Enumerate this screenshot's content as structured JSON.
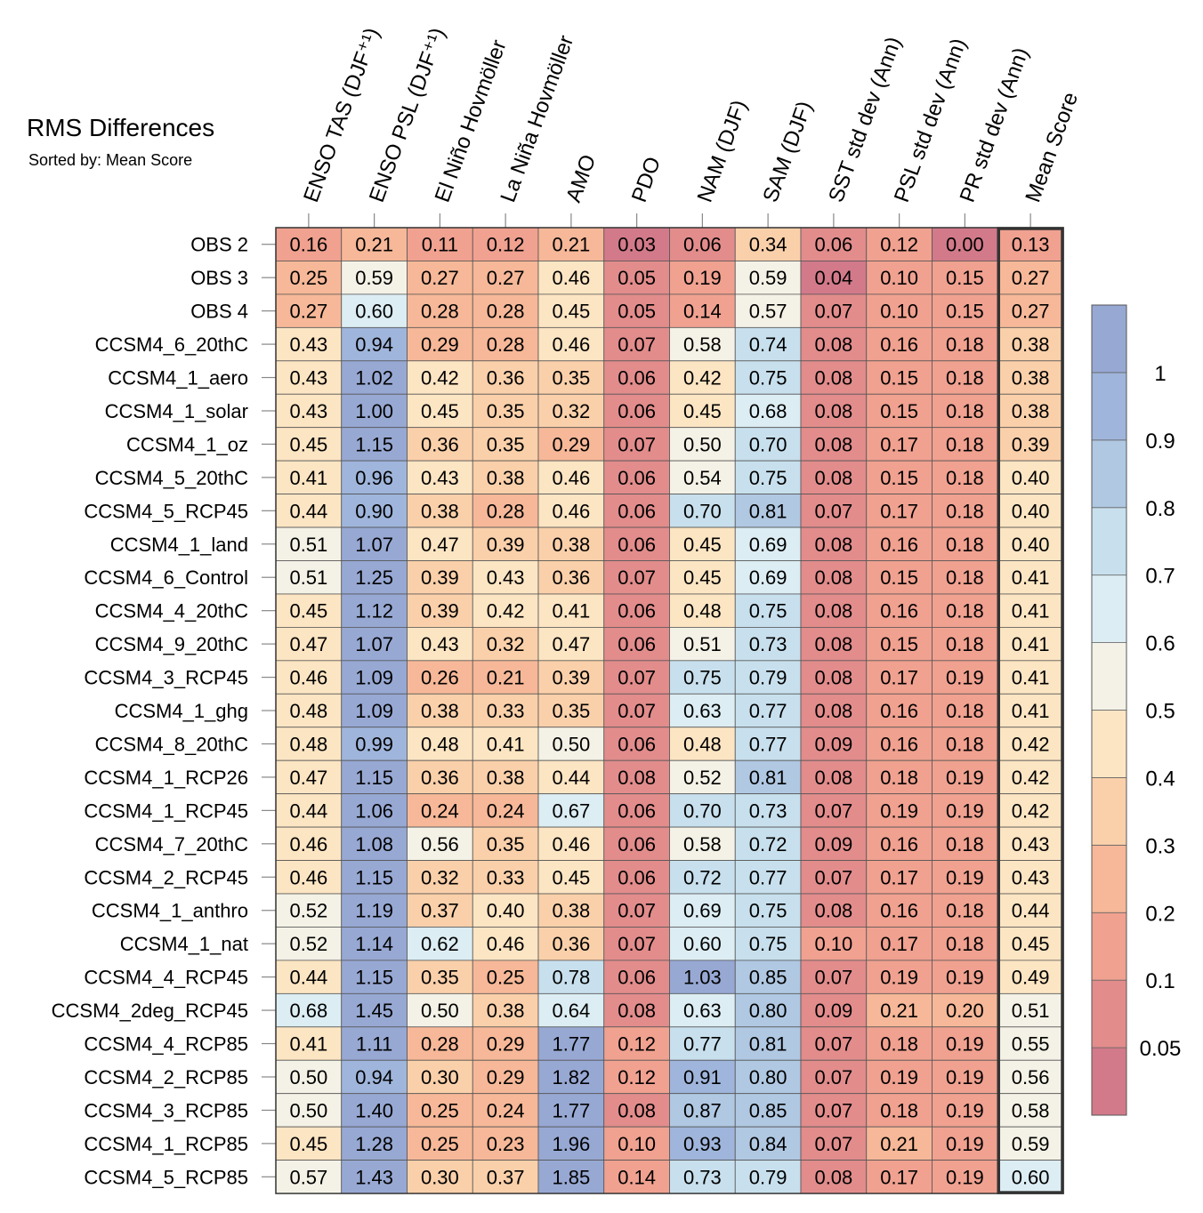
{
  "chart_data": {
    "type": "heatmap",
    "title": "RMS Differences",
    "subtitle": "Sorted by: Mean Score",
    "columns": [
      "ENSO TAS (DJF⁺¹)",
      "ENSO PSL (DJF⁺¹)",
      "El Niño Hovmöller",
      "La Niña Hovmöller",
      "AMO",
      "PDO",
      "NAM (DJF)",
      "SAM (DJF)",
      "SST std dev (Ann)",
      "PSL std dev (Ann)",
      "PR std dev (Ann)",
      "Mean Score"
    ],
    "rows": [
      {
        "name": "OBS 2",
        "values": [
          "0.16",
          "0.21",
          "0.11",
          "0.12",
          "0.21",
          "0.03",
          "0.06",
          "0.34",
          "0.06",
          "0.12",
          "0.00",
          "0.13"
        ]
      },
      {
        "name": "OBS 3",
        "values": [
          "0.25",
          "0.59",
          "0.27",
          "0.27",
          "0.46",
          "0.05",
          "0.19",
          "0.59",
          "0.04",
          "0.10",
          "0.15",
          "0.27"
        ]
      },
      {
        "name": "OBS 4",
        "values": [
          "0.27",
          "0.60",
          "0.28",
          "0.28",
          "0.45",
          "0.05",
          "0.14",
          "0.57",
          "0.07",
          "0.10",
          "0.15",
          "0.27"
        ]
      },
      {
        "name": "CCSM4_6_20thC",
        "values": [
          "0.43",
          "0.94",
          "0.29",
          "0.28",
          "0.46",
          "0.07",
          "0.58",
          "0.74",
          "0.08",
          "0.16",
          "0.18",
          "0.38"
        ]
      },
      {
        "name": "CCSM4_1_aero",
        "values": [
          "0.43",
          "1.02",
          "0.42",
          "0.36",
          "0.35",
          "0.06",
          "0.42",
          "0.75",
          "0.08",
          "0.15",
          "0.18",
          "0.38"
        ]
      },
      {
        "name": "CCSM4_1_solar",
        "values": [
          "0.43",
          "1.00",
          "0.45",
          "0.35",
          "0.32",
          "0.06",
          "0.45",
          "0.68",
          "0.08",
          "0.15",
          "0.18",
          "0.38"
        ]
      },
      {
        "name": "CCSM4_1_oz",
        "values": [
          "0.45",
          "1.15",
          "0.36",
          "0.35",
          "0.29",
          "0.07",
          "0.50",
          "0.70",
          "0.08",
          "0.17",
          "0.18",
          "0.39"
        ]
      },
      {
        "name": "CCSM4_5_20thC",
        "values": [
          "0.41",
          "0.96",
          "0.43",
          "0.38",
          "0.46",
          "0.06",
          "0.54",
          "0.75",
          "0.08",
          "0.15",
          "0.18",
          "0.40"
        ]
      },
      {
        "name": "CCSM4_5_RCP45",
        "values": [
          "0.44",
          "0.90",
          "0.38",
          "0.28",
          "0.46",
          "0.06",
          "0.70",
          "0.81",
          "0.07",
          "0.17",
          "0.18",
          "0.40"
        ]
      },
      {
        "name": "CCSM4_1_land",
        "values": [
          "0.51",
          "1.07",
          "0.47",
          "0.39",
          "0.38",
          "0.06",
          "0.45",
          "0.69",
          "0.08",
          "0.16",
          "0.18",
          "0.40"
        ]
      },
      {
        "name": "CCSM4_6_Control",
        "values": [
          "0.51",
          "1.25",
          "0.39",
          "0.43",
          "0.36",
          "0.07",
          "0.45",
          "0.69",
          "0.08",
          "0.15",
          "0.18",
          "0.41"
        ]
      },
      {
        "name": "CCSM4_4_20thC",
        "values": [
          "0.45",
          "1.12",
          "0.39",
          "0.42",
          "0.41",
          "0.06",
          "0.48",
          "0.75",
          "0.08",
          "0.16",
          "0.18",
          "0.41"
        ]
      },
      {
        "name": "CCSM4_9_20thC",
        "values": [
          "0.47",
          "1.07",
          "0.43",
          "0.32",
          "0.47",
          "0.06",
          "0.51",
          "0.73",
          "0.08",
          "0.15",
          "0.18",
          "0.41"
        ]
      },
      {
        "name": "CCSM4_3_RCP45",
        "values": [
          "0.46",
          "1.09",
          "0.26",
          "0.21",
          "0.39",
          "0.07",
          "0.75",
          "0.79",
          "0.08",
          "0.17",
          "0.19",
          "0.41"
        ]
      },
      {
        "name": "CCSM4_1_ghg",
        "values": [
          "0.48",
          "1.09",
          "0.38",
          "0.33",
          "0.35",
          "0.07",
          "0.63",
          "0.77",
          "0.08",
          "0.16",
          "0.18",
          "0.41"
        ]
      },
      {
        "name": "CCSM4_8_20thC",
        "values": [
          "0.48",
          "0.99",
          "0.48",
          "0.41",
          "0.50",
          "0.06",
          "0.48",
          "0.77",
          "0.09",
          "0.16",
          "0.18",
          "0.42"
        ]
      },
      {
        "name": "CCSM4_1_RCP26",
        "values": [
          "0.47",
          "1.15",
          "0.36",
          "0.38",
          "0.44",
          "0.08",
          "0.52",
          "0.81",
          "0.08",
          "0.18",
          "0.19",
          "0.42"
        ]
      },
      {
        "name": "CCSM4_1_RCP45",
        "values": [
          "0.44",
          "1.06",
          "0.24",
          "0.24",
          "0.67",
          "0.06",
          "0.70",
          "0.73",
          "0.07",
          "0.19",
          "0.19",
          "0.42"
        ]
      },
      {
        "name": "CCSM4_7_20thC",
        "values": [
          "0.46",
          "1.08",
          "0.56",
          "0.35",
          "0.46",
          "0.06",
          "0.58",
          "0.72",
          "0.09",
          "0.16",
          "0.18",
          "0.43"
        ]
      },
      {
        "name": "CCSM4_2_RCP45",
        "values": [
          "0.46",
          "1.15",
          "0.32",
          "0.33",
          "0.45",
          "0.06",
          "0.72",
          "0.77",
          "0.07",
          "0.17",
          "0.19",
          "0.43"
        ]
      },
      {
        "name": "CCSM4_1_anthro",
        "values": [
          "0.52",
          "1.19",
          "0.37",
          "0.40",
          "0.38",
          "0.07",
          "0.69",
          "0.75",
          "0.08",
          "0.16",
          "0.18",
          "0.44"
        ]
      },
      {
        "name": "CCSM4_1_nat",
        "values": [
          "0.52",
          "1.14",
          "0.62",
          "0.46",
          "0.36",
          "0.07",
          "0.60",
          "0.75",
          "0.10",
          "0.17",
          "0.18",
          "0.45"
        ]
      },
      {
        "name": "CCSM4_4_RCP45",
        "values": [
          "0.44",
          "1.15",
          "0.35",
          "0.25",
          "0.78",
          "0.06",
          "1.03",
          "0.85",
          "0.07",
          "0.19",
          "0.19",
          "0.49"
        ]
      },
      {
        "name": "CCSM4_2deg_RCP45",
        "values": [
          "0.68",
          "1.45",
          "0.50",
          "0.38",
          "0.64",
          "0.08",
          "0.63",
          "0.80",
          "0.09",
          "0.21",
          "0.20",
          "0.51"
        ]
      },
      {
        "name": "CCSM4_4_RCP85",
        "values": [
          "0.41",
          "1.11",
          "0.28",
          "0.29",
          "1.77",
          "0.12",
          "0.77",
          "0.81",
          "0.07",
          "0.18",
          "0.19",
          "0.55"
        ]
      },
      {
        "name": "CCSM4_2_RCP85",
        "values": [
          "0.50",
          "0.94",
          "0.30",
          "0.29",
          "1.82",
          "0.12",
          "0.91",
          "0.80",
          "0.07",
          "0.19",
          "0.19",
          "0.56"
        ]
      },
      {
        "name": "CCSM4_3_RCP85",
        "values": [
          "0.50",
          "1.40",
          "0.25",
          "0.24",
          "1.77",
          "0.08",
          "0.87",
          "0.85",
          "0.07",
          "0.18",
          "0.19",
          "0.58"
        ]
      },
      {
        "name": "CCSM4_1_RCP85",
        "values": [
          "0.45",
          "1.28",
          "0.25",
          "0.23",
          "1.96",
          "0.10",
          "0.93",
          "0.84",
          "0.07",
          "0.21",
          "0.19",
          "0.59"
        ]
      },
      {
        "name": "CCSM4_5_RCP85",
        "values": [
          "0.57",
          "1.43",
          "0.30",
          "0.37",
          "1.85",
          "0.14",
          "0.73",
          "0.79",
          "0.08",
          "0.17",
          "0.19",
          "0.60"
        ]
      }
    ],
    "colorbar": {
      "boundaries": [
        0.05,
        0.1,
        0.2,
        0.3,
        0.4,
        0.5,
        0.6,
        0.7,
        0.8,
        0.9,
        1
      ],
      "labels": [
        "0.05",
        "0.1",
        "0.2",
        "0.3",
        "0.4",
        "0.5",
        "0.6",
        "0.7",
        "0.8",
        "0.9",
        "1"
      ],
      "colors": [
        "#d27a8a",
        "#e28c8c",
        "#f0a190",
        "#f6b898",
        "#fad0aa",
        "#fce5c3",
        "#f4f2e6",
        "#dcedf3",
        "#c8e0ed",
        "#b0c8e2",
        "#9fb5db",
        "#97a8d3"
      ]
    }
  }
}
